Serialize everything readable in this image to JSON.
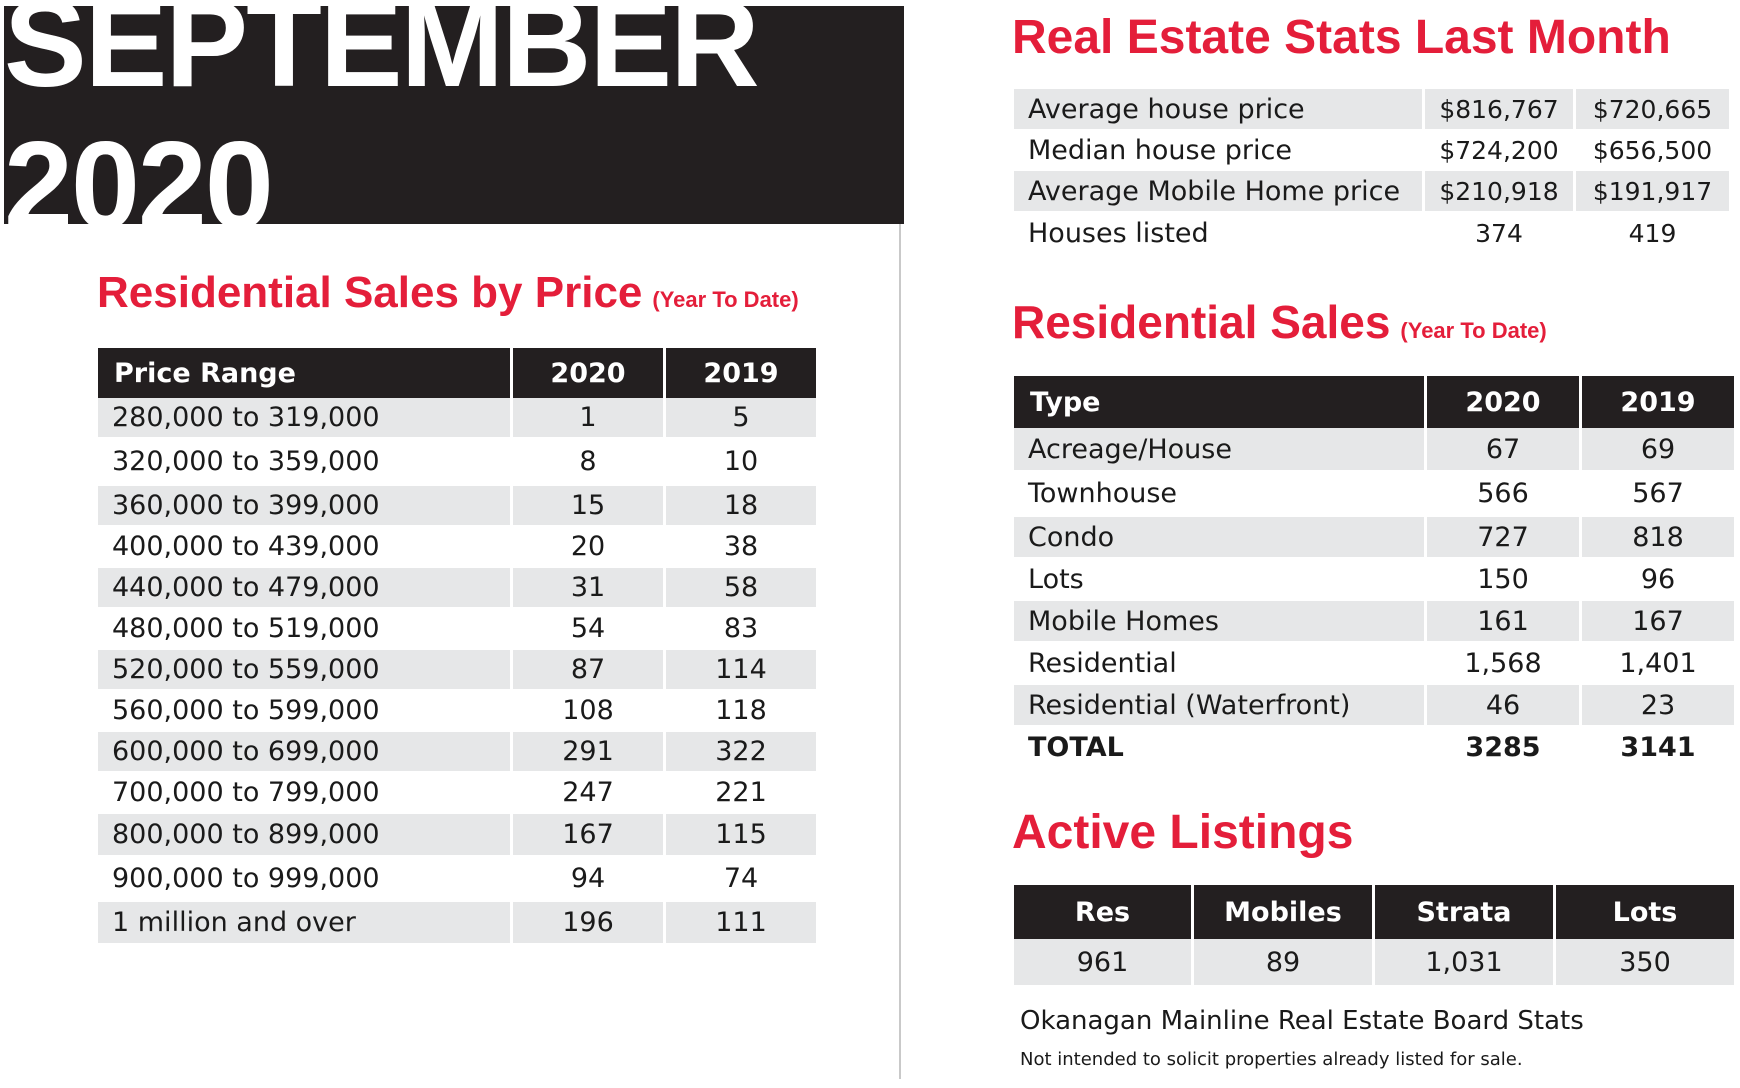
{
  "banner": "SEPTEMBER 2020",
  "left": {
    "title": "Residential Sales by Price",
    "subtitle": "(Year To Date)",
    "headers": [
      "Price Range",
      "2020",
      "2019"
    ],
    "rows": [
      [
        "280,000 to 319,000",
        "1",
        "5"
      ],
      [
        "320,000 to 359,000",
        "8",
        "10"
      ],
      [
        "360,000 to 399,000",
        "15",
        "18"
      ],
      [
        "400,000 to 439,000",
        "20",
        "38"
      ],
      [
        "440,000 to 479,000",
        "31",
        "58"
      ],
      [
        "480,000 to 519,000",
        "54",
        "83"
      ],
      [
        "520,000 to 559,000",
        "87",
        "114"
      ],
      [
        "560,000 to 599,000",
        "108",
        "118"
      ],
      [
        "600,000 to 699,000",
        "291",
        "322"
      ],
      [
        "700,000 to 799,000",
        "247",
        "221"
      ],
      [
        "800,000 to 899,000",
        "167",
        "115"
      ],
      [
        "900,000 to 999,000",
        "94",
        "74"
      ],
      [
        "1 million and over",
        "196",
        "111"
      ]
    ]
  },
  "stats": {
    "title": "Real Estate Stats Last Month",
    "rows": [
      [
        "Average house price",
        "$816,767",
        "$720,665"
      ],
      [
        "Median house price",
        "$724,200",
        "$656,500"
      ],
      [
        "Average Mobile Home price",
        "$210,918",
        "$191,917"
      ],
      [
        "Houses listed",
        "374",
        "419"
      ]
    ]
  },
  "sales": {
    "title": "Residential Sales",
    "subtitle": "(Year To Date)",
    "headers": [
      "Type",
      "2020",
      "2019"
    ],
    "rows": [
      [
        "Acreage/House",
        "67",
        "69"
      ],
      [
        "Townhouse",
        "566",
        "567"
      ],
      [
        "Condo",
        "727",
        "818"
      ],
      [
        "Lots",
        "150",
        "96"
      ],
      [
        "Mobile Homes",
        "161",
        "167"
      ],
      [
        "Residential",
        "1,568",
        "1,401"
      ],
      [
        "Residential (Waterfront)",
        "46",
        "23"
      ]
    ],
    "total": [
      "TOTAL",
      "3285",
      "3141"
    ]
  },
  "active": {
    "title": "Active Listings",
    "headers": [
      "Res",
      "Mobiles",
      "Strata",
      "Lots"
    ],
    "values": [
      "961",
      "89",
      "1,031",
      "350"
    ]
  },
  "footer": {
    "source": "Okanagan Mainline Real Estate Board Stats",
    "note": "Not intended to solicit properties already listed for sale."
  }
}
